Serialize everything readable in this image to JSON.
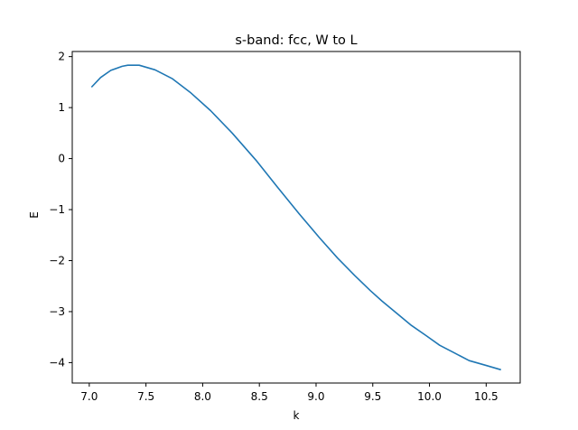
{
  "chart_data": {
    "type": "line",
    "title": "s-band: fcc, W to L",
    "xlabel": "k",
    "ylabel": "E",
    "xlim": [
      6.85,
      10.8
    ],
    "ylim": [
      -4.4,
      2.1
    ],
    "x_ticks": [
      7.0,
      7.5,
      8.0,
      8.5,
      9.0,
      9.5,
      10.0,
      10.5
    ],
    "x_tick_labels": [
      "7.0",
      "7.5",
      "8.0",
      "8.5",
      "9.0",
      "9.5",
      "10.0",
      "10.5"
    ],
    "y_ticks": [
      -4,
      -3,
      -2,
      -1,
      0,
      1,
      2
    ],
    "y_tick_labels": [
      "−4",
      "−3",
      "−2",
      "−1",
      "0",
      "1",
      "2"
    ],
    "grid": false,
    "series": [
      {
        "color": "#1f77b4",
        "x": [
          7.02,
          7.1,
          7.19,
          7.29,
          7.34,
          7.44,
          7.58,
          7.73,
          7.89,
          8.07,
          8.26,
          8.47,
          8.66,
          8.85,
          9.03,
          9.19,
          9.34,
          9.48,
          9.58,
          9.71,
          9.84,
          9.97,
          10.09,
          10.22,
          10.35,
          10.49,
          10.63
        ],
        "y": [
          1.4,
          1.59,
          1.73,
          1.81,
          1.83,
          1.83,
          1.74,
          1.57,
          1.3,
          0.94,
          0.5,
          -0.03,
          -0.56,
          -1.08,
          -1.55,
          -1.95,
          -2.29,
          -2.59,
          -2.79,
          -3.03,
          -3.27,
          -3.47,
          -3.66,
          -3.81,
          -3.96,
          -4.05,
          -4.14
        ]
      }
    ]
  }
}
